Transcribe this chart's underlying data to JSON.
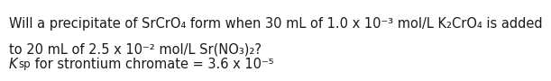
{
  "background_color": "#ffffff",
  "line1": "Will a precipitate of SrCrO₄ form when 30 mL of 1.0 x 10⁻³ mol/L K₂CrO₄ is added",
  "line2": "to 20 mL of 2.5 x 10⁻² mol/L Sr(NO₃)₂?",
  "line3_K": "K",
  "line3_sp": "sp",
  "line3_rest": " for strontium chromate = 3.6 x 10⁻⁵",
  "font_size_main": 10.5,
  "font_size_sub": 8.5,
  "text_color": "#1a1a1a",
  "fig_width": 5.26,
  "fig_height": 0.92
}
